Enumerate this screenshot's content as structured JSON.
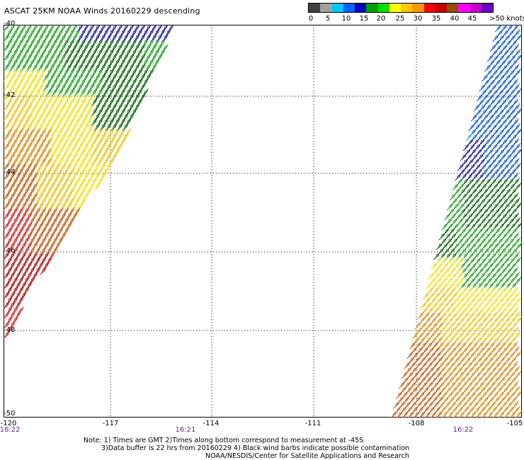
{
  "title": "ASCAT 25KM NOAA Winds 20160229 descending",
  "legend": {
    "colors": [
      "#404040",
      "#a0a0a0",
      "#00c8ff",
      "#0064ff",
      "#0000c8",
      "#00a000",
      "#00e000",
      "#ffff00",
      "#ffc800",
      "#ff9600",
      "#ff0000",
      "#c80000",
      "#964b00",
      "#ff00ff",
      "#c800c8",
      "#6400c8"
    ],
    "labels": [
      "0",
      "5",
      "10",
      "15",
      "20",
      "25",
      "30",
      "35",
      "40",
      "45",
      ">50 knots"
    ]
  },
  "lat_labels": [
    "-40",
    "-42",
    "-44",
    "-46",
    "-48",
    "-50"
  ],
  "lon_labels": [
    "-120",
    "-117",
    "-114",
    "-111",
    "-108",
    "-105"
  ],
  "time_labels": [
    "16:22",
    "16:21",
    "16:22"
  ],
  "notes": [
    "Note: 1) Times are GMT 2)Times along bottom correspond to measurement at -45S",
    "3)Data buffer is 22 hrs from 20160229 4) Black wind barbs indicate possible contamination",
    "NOAA/NESDIS/Center for Satellite Applications and Research"
  ],
  "swath_colors": {
    "dark_blue": "#1010a0",
    "blue": "#0050e0",
    "light_blue": "#20a0ff",
    "green": "#10a010",
    "dark_green": "#006000",
    "yellow": "#f0e000",
    "gold": "#f0c000",
    "orange": "#e08000",
    "dark_orange": "#c85000",
    "red": "#e01010",
    "dark_red": "#b00000"
  }
}
